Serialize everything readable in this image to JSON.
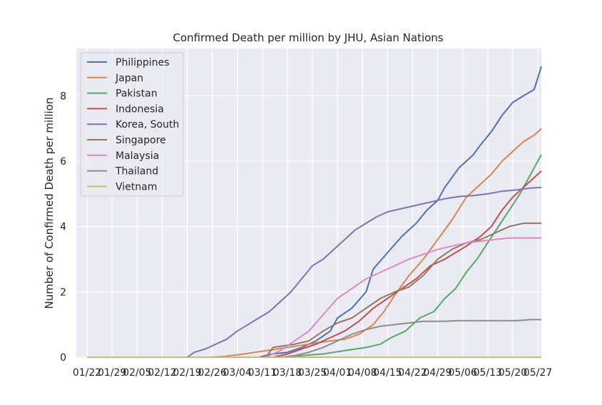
{
  "chart_data": {
    "type": "line",
    "title": "Confirmed Death per million by JHU, Asian Nations",
    "xlabel": "",
    "ylabel": "Number of Confirmed Death per million",
    "x_ticks": [
      "01/22",
      "01/29",
      "02/05",
      "02/12",
      "02/19",
      "02/26",
      "03/04",
      "03/11",
      "03/18",
      "03/25",
      "04/01",
      "04/08",
      "04/15",
      "04/22",
      "04/29",
      "05/06",
      "05/13",
      "05/20",
      "05/27"
    ],
    "x_range_days": [
      -3,
      127
    ],
    "ylim": [
      0,
      9.45
    ],
    "y_ticks": [
      0,
      2,
      4,
      6,
      8
    ],
    "grid": true,
    "legend_position": "upper-left",
    "x_unit_note": "x values are days since 01/22",
    "series": [
      {
        "name": "Philippines",
        "color": "#4c72b0",
        "points": [
          [
            0,
            0
          ],
          [
            48,
            0
          ],
          [
            52,
            0.1
          ],
          [
            56,
            0.15
          ],
          [
            60,
            0.3
          ],
          [
            64,
            0.5
          ],
          [
            68,
            0.8
          ],
          [
            70,
            1.2
          ],
          [
            74,
            1.5
          ],
          [
            78,
            2.0
          ],
          [
            80,
            2.7
          ],
          [
            84,
            3.2
          ],
          [
            88,
            3.7
          ],
          [
            92,
            4.1
          ],
          [
            95,
            4.5
          ],
          [
            98,
            4.8
          ],
          [
            100,
            5.2
          ],
          [
            102,
            5.5
          ],
          [
            104,
            5.8
          ],
          [
            108,
            6.2
          ],
          [
            110,
            6.5
          ],
          [
            113,
            6.9
          ],
          [
            116,
            7.4
          ],
          [
            119,
            7.8
          ],
          [
            122,
            8.0
          ],
          [
            125,
            8.2
          ],
          [
            127,
            8.9
          ]
        ]
      },
      {
        "name": "Japan",
        "color": "#dd8452",
        "points": [
          [
            0,
            0
          ],
          [
            34,
            0
          ],
          [
            38,
            0.02
          ],
          [
            44,
            0.1
          ],
          [
            50,
            0.2
          ],
          [
            56,
            0.3
          ],
          [
            62,
            0.4
          ],
          [
            68,
            0.5
          ],
          [
            72,
            0.55
          ],
          [
            76,
            0.7
          ],
          [
            80,
            1.0
          ],
          [
            83,
            1.4
          ],
          [
            86,
            1.9
          ],
          [
            90,
            2.5
          ],
          [
            94,
            3.0
          ],
          [
            98,
            3.6
          ],
          [
            102,
            4.2
          ],
          [
            106,
            4.9
          ],
          [
            110,
            5.3
          ],
          [
            113,
            5.6
          ],
          [
            116,
            6.0
          ],
          [
            119,
            6.3
          ],
          [
            122,
            6.6
          ],
          [
            125,
            6.8
          ],
          [
            127,
            7.0
          ]
        ]
      },
      {
        "name": "Pakistan",
        "color": "#55a868",
        "points": [
          [
            0,
            0
          ],
          [
            55,
            0
          ],
          [
            60,
            0.05
          ],
          [
            66,
            0.1
          ],
          [
            72,
            0.2
          ],
          [
            78,
            0.3
          ],
          [
            82,
            0.4
          ],
          [
            85,
            0.6
          ],
          [
            89,
            0.8
          ],
          [
            93,
            1.2
          ],
          [
            97,
            1.4
          ],
          [
            100,
            1.8
          ],
          [
            103,
            2.1
          ],
          [
            106,
            2.6
          ],
          [
            109,
            3.0
          ],
          [
            112,
            3.5
          ],
          [
            115,
            4.0
          ],
          [
            118,
            4.5
          ],
          [
            121,
            5.0
          ],
          [
            124,
            5.6
          ],
          [
            127,
            6.2
          ]
        ]
      },
      {
        "name": "Indonesia",
        "color": "#c44e52",
        "points": [
          [
            0,
            0
          ],
          [
            52,
            0
          ],
          [
            56,
            0.1
          ],
          [
            60,
            0.25
          ],
          [
            64,
            0.4
          ],
          [
            68,
            0.6
          ],
          [
            72,
            0.8
          ],
          [
            76,
            1.1
          ],
          [
            80,
            1.5
          ],
          [
            84,
            1.8
          ],
          [
            88,
            2.1
          ],
          [
            92,
            2.4
          ],
          [
            96,
            2.8
          ],
          [
            100,
            3.0
          ],
          [
            103,
            3.2
          ],
          [
            106,
            3.4
          ],
          [
            110,
            3.7
          ],
          [
            113,
            4.0
          ],
          [
            116,
            4.5
          ],
          [
            119,
            4.9
          ],
          [
            122,
            5.2
          ],
          [
            125,
            5.5
          ],
          [
            127,
            5.7
          ]
        ]
      },
      {
        "name": "Korea, South",
        "color": "#8172b3",
        "points": [
          [
            0,
            0
          ],
          [
            28,
            0
          ],
          [
            30,
            0.15
          ],
          [
            33,
            0.25
          ],
          [
            36,
            0.4
          ],
          [
            39,
            0.55
          ],
          [
            42,
            0.8
          ],
          [
            45,
            1.0
          ],
          [
            48,
            1.2
          ],
          [
            51,
            1.4
          ],
          [
            54,
            1.7
          ],
          [
            57,
            2.0
          ],
          [
            60,
            2.4
          ],
          [
            63,
            2.8
          ],
          [
            66,
            3.0
          ],
          [
            69,
            3.3
          ],
          [
            72,
            3.6
          ],
          [
            75,
            3.9
          ],
          [
            78,
            4.1
          ],
          [
            81,
            4.3
          ],
          [
            84,
            4.45
          ],
          [
            88,
            4.55
          ],
          [
            92,
            4.65
          ],
          [
            96,
            4.75
          ],
          [
            100,
            4.85
          ],
          [
            104,
            4.92
          ],
          [
            108,
            4.95
          ],
          [
            112,
            5.0
          ],
          [
            116,
            5.08
          ],
          [
            120,
            5.12
          ],
          [
            124,
            5.18
          ],
          [
            127,
            5.2
          ]
        ]
      },
      {
        "name": "Singapore",
        "color": "#937860",
        "points": [
          [
            0,
            0
          ],
          [
            50,
            0
          ],
          [
            52,
            0.3
          ],
          [
            58,
            0.4
          ],
          [
            62,
            0.5
          ],
          [
            66,
            0.8
          ],
          [
            70,
            1.05
          ],
          [
            74,
            1.2
          ],
          [
            78,
            1.5
          ],
          [
            82,
            1.8
          ],
          [
            86,
            2.0
          ],
          [
            90,
            2.15
          ],
          [
            94,
            2.5
          ],
          [
            98,
            3.0
          ],
          [
            102,
            3.3
          ],
          [
            106,
            3.5
          ],
          [
            110,
            3.6
          ],
          [
            114,
            3.8
          ],
          [
            118,
            4.0
          ],
          [
            122,
            4.1
          ],
          [
            127,
            4.1
          ]
        ]
      },
      {
        "name": "Malaysia",
        "color": "#da8bc3",
        "points": [
          [
            0,
            0
          ],
          [
            50,
            0
          ],
          [
            54,
            0.2
          ],
          [
            58,
            0.5
          ],
          [
            62,
            0.8
          ],
          [
            66,
            1.3
          ],
          [
            70,
            1.8
          ],
          [
            74,
            2.1
          ],
          [
            78,
            2.4
          ],
          [
            82,
            2.6
          ],
          [
            86,
            2.8
          ],
          [
            90,
            3.0
          ],
          [
            94,
            3.15
          ],
          [
            98,
            3.3
          ],
          [
            102,
            3.4
          ],
          [
            106,
            3.5
          ],
          [
            110,
            3.55
          ],
          [
            114,
            3.6
          ],
          [
            118,
            3.65
          ],
          [
            122,
            3.65
          ],
          [
            127,
            3.65
          ]
        ]
      },
      {
        "name": "Thailand",
        "color": "#8c8c8c",
        "points": [
          [
            0,
            0
          ],
          [
            54,
            0
          ],
          [
            58,
            0.05
          ],
          [
            62,
            0.15
          ],
          [
            66,
            0.3
          ],
          [
            70,
            0.5
          ],
          [
            74,
            0.7
          ],
          [
            78,
            0.85
          ],
          [
            82,
            0.95
          ],
          [
            86,
            1.0
          ],
          [
            90,
            1.05
          ],
          [
            94,
            1.1
          ],
          [
            100,
            1.1
          ],
          [
            104,
            1.12
          ],
          [
            108,
            1.12
          ],
          [
            114,
            1.12
          ],
          [
            120,
            1.12
          ],
          [
            124,
            1.15
          ],
          [
            127,
            1.15
          ]
        ]
      },
      {
        "name": "Vietnam",
        "color": "#ccb974",
        "points": [
          [
            0,
            0
          ],
          [
            127,
            0
          ]
        ]
      }
    ]
  }
}
